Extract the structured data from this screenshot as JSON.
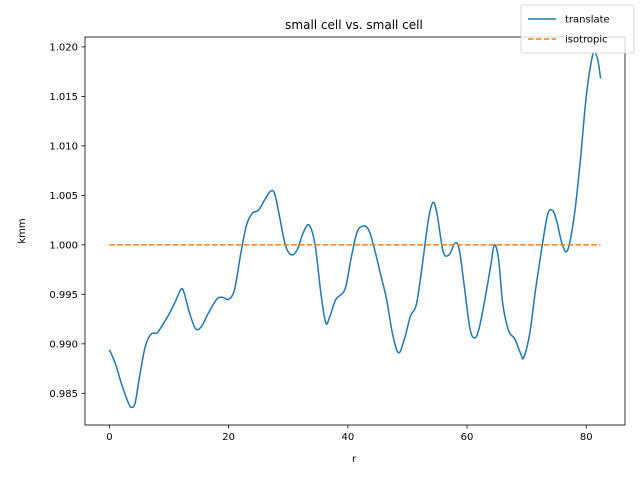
{
  "chart_data": {
    "type": "line",
    "title": "small cell vs. small cell",
    "xlabel": "r",
    "ylabel": "kmm",
    "xlim": [
      -4.1,
      86.5
    ],
    "ylim": [
      0.9818,
      1.021
    ],
    "xticks": [
      0,
      20,
      40,
      60,
      80
    ],
    "xtick_labels": [
      "0",
      "20",
      "40",
      "60",
      "80"
    ],
    "yticks": [
      0.985,
      0.99,
      0.995,
      1.0,
      1.005,
      1.01,
      1.015,
      1.02
    ],
    "ytick_labels": [
      "0.985",
      "0.990",
      "0.995",
      "1.000",
      "1.005",
      "1.010",
      "1.015",
      "1.020"
    ],
    "grid": false,
    "legend_position": "top-right",
    "series": [
      {
        "name": "translate",
        "color": "#1f77b4",
        "style": "solid",
        "x": [
          0,
          1,
          2,
          3,
          3.6,
          4.3,
          5,
          6,
          7,
          8,
          9,
          10,
          11,
          12,
          12.5,
          13.5,
          14.5,
          15.5,
          16.5,
          18,
          19,
          20,
          21,
          22,
          23,
          24,
          25,
          26,
          27,
          27.7,
          28.5,
          29.5,
          30.5,
          31.5,
          32.5,
          33.5,
          34.5,
          35.5,
          36.3,
          37,
          38,
          39.5,
          40.5,
          41.5,
          42.5,
          43.5,
          44.5,
          45.5,
          46.5,
          47.5,
          48.5,
          49.5,
          50.5,
          51.5,
          52.5,
          53.5,
          54.3,
          55,
          56,
          57,
          58,
          58.7,
          59.5,
          60.5,
          61.3,
          62,
          63,
          64,
          64.6,
          65.3,
          66,
          67,
          68,
          69,
          69.5,
          70.5,
          71.5,
          72.5,
          73.5,
          74.3,
          75,
          76,
          76.9,
          78,
          79,
          80,
          81,
          81.5,
          82,
          82.4
        ],
        "y": [
          0.9894,
          0.988,
          0.986,
          0.9843,
          0.9836,
          0.984,
          0.9865,
          0.9897,
          0.991,
          0.9911,
          0.992,
          0.993,
          0.9942,
          0.9955,
          0.9952,
          0.993,
          0.9915,
          0.9918,
          0.993,
          0.9945,
          0.9947,
          0.9945,
          0.9955,
          0.999,
          1.002,
          1.0032,
          1.0035,
          1.0045,
          1.0054,
          1.0052,
          1.003,
          1.0,
          0.999,
          0.9995,
          1.0012,
          1.002,
          1.0,
          0.995,
          0.9921,
          0.9928,
          0.9945,
          0.9955,
          0.9985,
          1.0012,
          1.0019,
          1.0015,
          0.9995,
          0.997,
          0.9945,
          0.991,
          0.9891,
          0.9905,
          0.9928,
          0.994,
          0.998,
          1.0025,
          1.0043,
          1.003,
          0.9993,
          0.999,
          1.0002,
          0.9995,
          0.996,
          0.9915,
          0.9906,
          0.9915,
          0.9945,
          0.998,
          1.0,
          0.9985,
          0.994,
          0.9913,
          0.9905,
          0.989,
          0.9886,
          0.991,
          0.9955,
          0.9995,
          1.003,
          1.0035,
          1.0025,
          1.0,
          0.9995,
          1.003,
          1.0085,
          1.015,
          1.019,
          1.0194,
          1.0185,
          1.0168
        ]
      },
      {
        "name": "isotropic",
        "color": "#ff7f0e",
        "style": "dashed",
        "x": [
          0,
          82.4
        ],
        "y": [
          1.0,
          1.0
        ]
      }
    ]
  }
}
